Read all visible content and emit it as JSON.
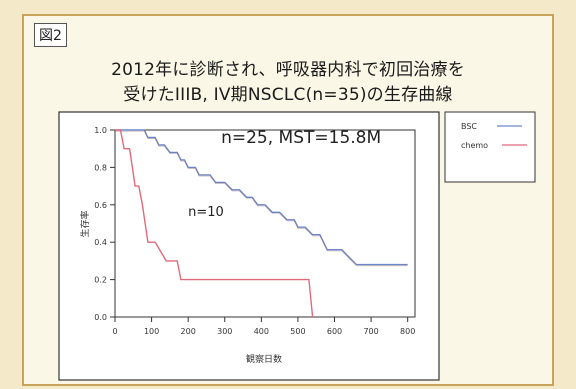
{
  "figure_label": "図2",
  "title_line1": "2012年に診断され、呼吸器内科で初回治療を",
  "title_line2": "受けたIIIB, IV期NSCLC(n=35)の生存曲線",
  "colors": {
    "bsc": "#6b86c8",
    "chemo": "#e06a7a",
    "bsc_overlay": "#a07070"
  },
  "chart_data": {
    "type": "line",
    "title": "受けたIIIB, IV期NSCLC(n=35)の生存曲線",
    "xlabel": "観察日数",
    "ylabel": "生存率",
    "xlim": [
      0,
      820
    ],
    "ylim": [
      0,
      1.0
    ],
    "x_ticks": [
      0,
      100,
      200,
      300,
      400,
      500,
      600,
      700,
      800
    ],
    "y_ticks": [
      0.0,
      0.2,
      0.4,
      0.6,
      0.8,
      1.0
    ],
    "y_tick_labels": [
      "0.0",
      "0.2",
      "0.4",
      "0.6",
      "0.8",
      "1.0"
    ],
    "legend_position": "top-right-outside",
    "annotations": [
      {
        "text": "n=25,  MST=15.8M",
        "x": 290,
        "y": 0.93
      },
      {
        "text": "n=10",
        "x": 200,
        "y": 0.54
      }
    ],
    "series": [
      {
        "name": "BSC",
        "step": true,
        "x": [
          0,
          80,
          90,
          110,
          120,
          135,
          150,
          170,
          180,
          190,
          200,
          220,
          230,
          260,
          275,
          300,
          320,
          340,
          360,
          375,
          390,
          410,
          430,
          450,
          470,
          490,
          500,
          520,
          540,
          560,
          580,
          620,
          640,
          660,
          800
        ],
        "y": [
          1.0,
          1.0,
          0.96,
          0.96,
          0.92,
          0.92,
          0.88,
          0.88,
          0.84,
          0.84,
          0.8,
          0.8,
          0.76,
          0.76,
          0.72,
          0.72,
          0.68,
          0.68,
          0.64,
          0.64,
          0.6,
          0.6,
          0.56,
          0.56,
          0.52,
          0.52,
          0.48,
          0.48,
          0.44,
          0.44,
          0.36,
          0.36,
          0.32,
          0.28,
          0.28
        ]
      },
      {
        "name": "chemo",
        "step": true,
        "x": [
          0,
          15,
          25,
          40,
          55,
          65,
          75,
          90,
          110,
          140,
          170,
          180,
          200,
          530,
          540
        ],
        "y": [
          1.0,
          1.0,
          0.9,
          0.9,
          0.7,
          0.7,
          0.6,
          0.4,
          0.4,
          0.3,
          0.3,
          0.2,
          0.2,
          0.2,
          0.0
        ]
      }
    ]
  }
}
